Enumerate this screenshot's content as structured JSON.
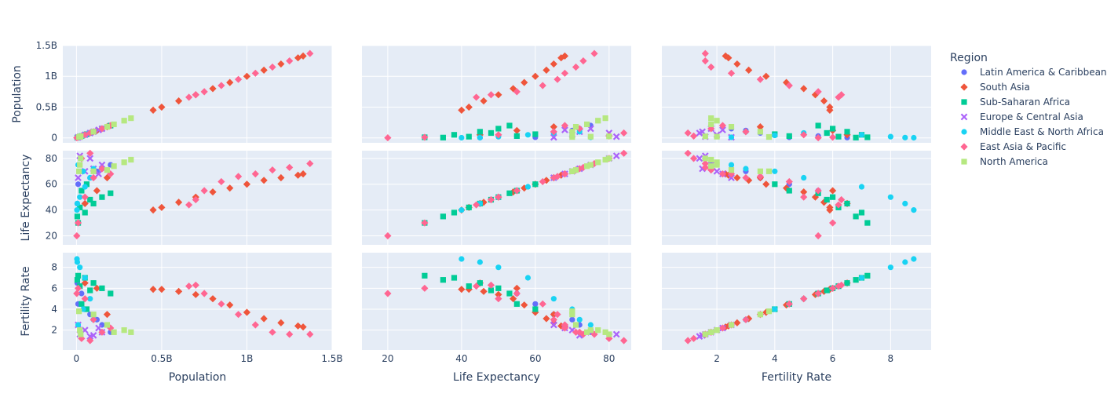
{
  "chart_data": {
    "type": "scatter",
    "subtype": "scatter-matrix",
    "dimensions": [
      "Population",
      "Life Expectancy",
      "Fertility Rate"
    ],
    "axes": {
      "Population": {
        "range": [
          -0.08,
          1.5
        ],
        "ticks": [
          0,
          0.5,
          1,
          1.5
        ],
        "tick_labels": [
          "0",
          "0.5B",
          "1B",
          "1.5B"
        ],
        "unit": "billions"
      },
      "Life Expectancy": {
        "range": [
          13,
          86
        ],
        "ticks": [
          20,
          40,
          60,
          80
        ],
        "tick_labels": [
          "20",
          "40",
          "60",
          "80"
        ]
      },
      "Fertility Rate": {
        "range": [
          0.1,
          9.4
        ],
        "ticks": [
          2,
          4,
          6,
          8
        ],
        "tick_labels": [
          "2",
          "4",
          "6",
          "8"
        ]
      }
    },
    "x_axis_titles": [
      "Population",
      "Life Expectancy",
      "Fertility Rate"
    ],
    "y_axis_titles": [
      "Population",
      "Life Expectancy",
      "Fertility Rate"
    ],
    "bottom_ticks_shown": {
      "Population": [
        "0",
        "0.5B",
        "1B",
        "1.5B"
      ],
      "Life Expectancy": [
        "20",
        "40",
        "60",
        "80"
      ],
      "Fertility Rate": [
        "2",
        "4",
        "6",
        "8"
      ]
    },
    "legend": {
      "title": "Region",
      "placement": "right"
    },
    "grid": true,
    "series": [
      {
        "name": "Latin America & Caribbean",
        "color": "#636efa",
        "marker": "circle",
        "points": [
          [
            0.005,
            45,
            6.5
          ],
          [
            0.03,
            55,
            5.5
          ],
          [
            0.08,
            65,
            3.5
          ],
          [
            0.15,
            72,
            2.5
          ],
          [
            0.2,
            75,
            1.8
          ],
          [
            0.01,
            60,
            4.5
          ],
          [
            0.12,
            70,
            3.0
          ]
        ]
      },
      {
        "name": "South Asia",
        "color": "#ef553b",
        "marker": "diamond",
        "points": [
          [
            0.45,
            40,
            5.9
          ],
          [
            0.5,
            42,
            5.9
          ],
          [
            0.6,
            46,
            5.7
          ],
          [
            0.7,
            50,
            5.4
          ],
          [
            0.8,
            54,
            5.0
          ],
          [
            0.9,
            57,
            4.4
          ],
          [
            1.0,
            60,
            3.7
          ],
          [
            1.1,
            63,
            3.1
          ],
          [
            1.2,
            65,
            2.7
          ],
          [
            1.3,
            67,
            2.4
          ],
          [
            1.33,
            68,
            2.3
          ],
          [
            0.05,
            45,
            6.5
          ],
          [
            0.12,
            55,
            6.0
          ],
          [
            0.18,
            65,
            3.5
          ]
        ]
      },
      {
        "name": "Sub-Saharan Africa",
        "color": "#00cc96",
        "marker": "square",
        "points": [
          [
            0.005,
            35,
            6.8
          ],
          [
            0.05,
            38,
            7.0
          ],
          [
            0.1,
            45,
            6.5
          ],
          [
            0.15,
            50,
            6.0
          ],
          [
            0.2,
            53,
            5.5
          ],
          [
            0.02,
            42,
            6.2
          ],
          [
            0.08,
            48,
            5.8
          ],
          [
            0.03,
            55,
            4.5
          ],
          [
            0.01,
            30,
            7.2
          ],
          [
            0.06,
            60,
            4.0
          ]
        ]
      },
      {
        "name": "Europe & Central Asia",
        "color": "#ab63fa",
        "marker": "x",
        "points": [
          [
            0.01,
            65,
            2.5
          ],
          [
            0.05,
            70,
            2.0
          ],
          [
            0.1,
            72,
            1.5
          ],
          [
            0.15,
            75,
            1.8
          ],
          [
            0.08,
            80,
            1.4
          ],
          [
            0.02,
            82,
            1.6
          ],
          [
            0.13,
            68,
            2.2
          ]
        ]
      },
      {
        "name": "Middle East & North Africa",
        "color": "#19d3f3",
        "marker": "circle",
        "points": [
          [
            0.005,
            45,
            8.5
          ],
          [
            0.02,
            50,
            8.0
          ],
          [
            0.05,
            58,
            7.0
          ],
          [
            0.08,
            65,
            5.0
          ],
          [
            0.1,
            72,
            3.0
          ],
          [
            0.01,
            75,
            2.5
          ],
          [
            0.04,
            70,
            4.0
          ],
          [
            0.003,
            40,
            8.8
          ]
        ]
      },
      {
        "name": "East Asia & Pacific",
        "color": "#ff6692",
        "marker": "diamond",
        "points": [
          [
            0.66,
            44,
            6.2
          ],
          [
            0.7,
            48,
            6.3
          ],
          [
            0.75,
            55,
            5.5
          ],
          [
            0.85,
            62,
            4.5
          ],
          [
            0.95,
            66,
            3.5
          ],
          [
            1.05,
            68,
            2.5
          ],
          [
            1.15,
            71,
            1.8
          ],
          [
            1.25,
            73,
            1.6
          ],
          [
            1.37,
            76,
            1.6
          ],
          [
            0.002,
            20,
            5.5
          ],
          [
            0.01,
            30,
            6.0
          ],
          [
            0.05,
            50,
            5.0
          ],
          [
            0.1,
            65,
            3.0
          ],
          [
            0.15,
            72,
            1.8
          ],
          [
            0.2,
            68,
            2.2
          ],
          [
            0.03,
            80,
            1.2
          ],
          [
            0.08,
            84,
            1.0
          ]
        ]
      },
      {
        "name": "North America",
        "color": "#b6e880",
        "marker": "square",
        "points": [
          [
            0.015,
            70,
            3.8
          ],
          [
            0.1,
            70,
            3.5
          ],
          [
            0.18,
            71,
            2.5
          ],
          [
            0.22,
            74,
            1.8
          ],
          [
            0.28,
            77,
            2.0
          ],
          [
            0.32,
            79,
            1.8
          ],
          [
            0.025,
            80,
            1.6
          ],
          [
            0.02,
            75,
            2.0
          ]
        ]
      }
    ]
  }
}
